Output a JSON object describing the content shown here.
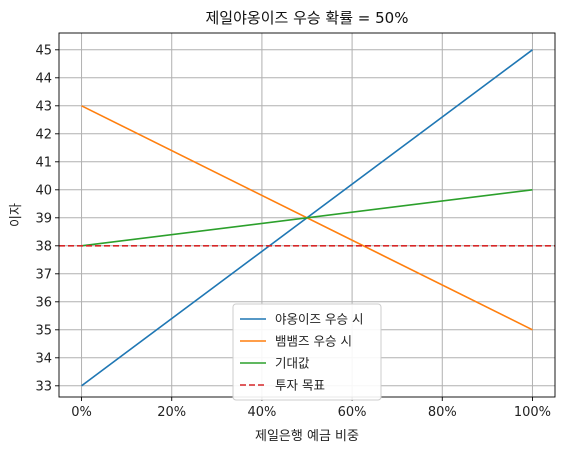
{
  "chart_data": {
    "type": "line",
    "title": "제일야옹이즈 우승 확률 = 50%",
    "xlabel": "제일은행 예금 비중",
    "ylabel": "이자",
    "xlim": [
      -0.05,
      1.05
    ],
    "ylim": [
      32.6,
      45.6
    ],
    "x_ticks": [
      0,
      0.2,
      0.4,
      0.6,
      0.8,
      1.0
    ],
    "x_tick_labels": [
      "0%",
      "20%",
      "40%",
      "60%",
      "80%",
      "100%"
    ],
    "y_ticks": [
      33,
      34,
      35,
      36,
      37,
      38,
      39,
      40,
      41,
      42,
      43,
      44,
      45
    ],
    "y_tick_labels": [
      "33",
      "34",
      "35",
      "36",
      "37",
      "38",
      "39",
      "40",
      "41",
      "42",
      "43",
      "44",
      "45"
    ],
    "grid": true,
    "legend_position": "lower-center",
    "series": [
      {
        "name": "야옹이즈 우승 시",
        "color": "#1f77b4",
        "style": "solid",
        "x": [
          0,
          1
        ],
        "y": [
          33,
          45
        ]
      },
      {
        "name": "뱀뱀즈 우승 시",
        "color": "#ff7f0e",
        "style": "solid",
        "x": [
          0,
          1
        ],
        "y": [
          43,
          35
        ]
      },
      {
        "name": "기대값",
        "color": "#2ca02c",
        "style": "solid",
        "x": [
          0,
          1
        ],
        "y": [
          38,
          40
        ]
      },
      {
        "name": "투자 목표",
        "color": "#d62728",
        "style": "dashed",
        "hline": 38
      }
    ]
  }
}
